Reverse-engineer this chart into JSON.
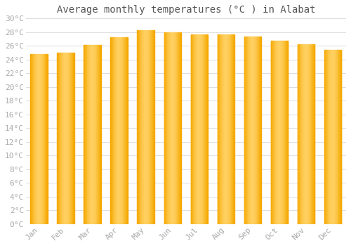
{
  "title": "Average monthly temperatures (°C ) in Alabat",
  "months": [
    "Jan",
    "Feb",
    "Mar",
    "Apr",
    "May",
    "Jun",
    "Jul",
    "Aug",
    "Sep",
    "Oct",
    "Nov",
    "Dec"
  ],
  "temperatures": [
    24.8,
    25.0,
    26.1,
    27.3,
    28.3,
    28.0,
    27.7,
    27.7,
    27.4,
    26.7,
    26.2,
    25.4
  ],
  "bar_color_left": "#F5A800",
  "bar_color_center": "#FFD060",
  "bar_color_right": "#F5A800",
  "background_color": "#FFFFFF",
  "plot_bg_color": "#FFFFFF",
  "ylim": [
    0,
    30
  ],
  "ytick_step": 2,
  "grid_color": "#DDDDDD",
  "title_fontsize": 10,
  "tick_fontsize": 8,
  "tick_color": "#AAAAAA",
  "font_family": "monospace",
  "bar_width": 0.65
}
